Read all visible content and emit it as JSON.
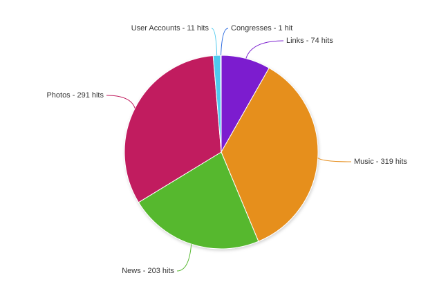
{
  "chart_data": {
    "type": "pie",
    "values": [
      74,
      319,
      203,
      291,
      11,
      1
    ],
    "value_labels": [
      "Links - 74 hits",
      "Music - 319 hits",
      "News - 203 hits",
      "Photos - 291 hits",
      "User Accounts - 11 hits",
      "Congresses - 1 hit"
    ],
    "colors": [
      "#7b1fcf",
      "#e68f1f",
      "#56b82f",
      "#c11e5f",
      "#4fcaef",
      "#2a6ae0"
    ]
  }
}
